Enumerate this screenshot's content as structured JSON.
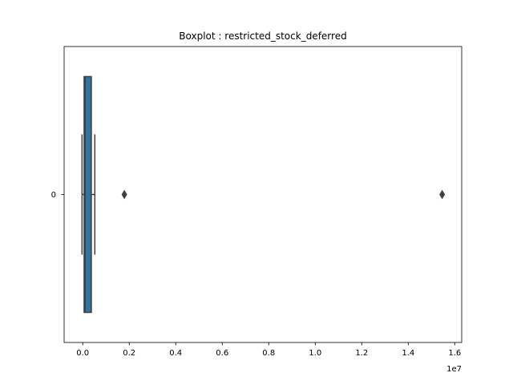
{
  "chart_data": {
    "type": "box",
    "orientation": "horizontal",
    "title": "Boxplot : restricted_stock_deferred",
    "xlabel": "",
    "ylabel": "",
    "x_offset_label": "1e7",
    "xlim": [
      -800000,
      16300000
    ],
    "xticks": [
      0,
      2000000,
      4000000,
      6000000,
      8000000,
      10000000,
      12000000,
      14000000,
      16000000
    ],
    "xtick_labels": [
      "0.0",
      "0.2",
      "0.4",
      "0.6",
      "0.8",
      "1.0",
      "1.2",
      "1.4",
      "1.6"
    ],
    "categories": [
      "0"
    ],
    "series": [
      {
        "whisker_low": -30000,
        "q1": 60000,
        "median": 100000,
        "q3": 370000,
        "whisker_high": 520000,
        "outliers": [
          1790000,
          15460000
        ]
      }
    ],
    "colors": {
      "box_fill": "#3274a1",
      "line": "#3f3f3f"
    }
  }
}
